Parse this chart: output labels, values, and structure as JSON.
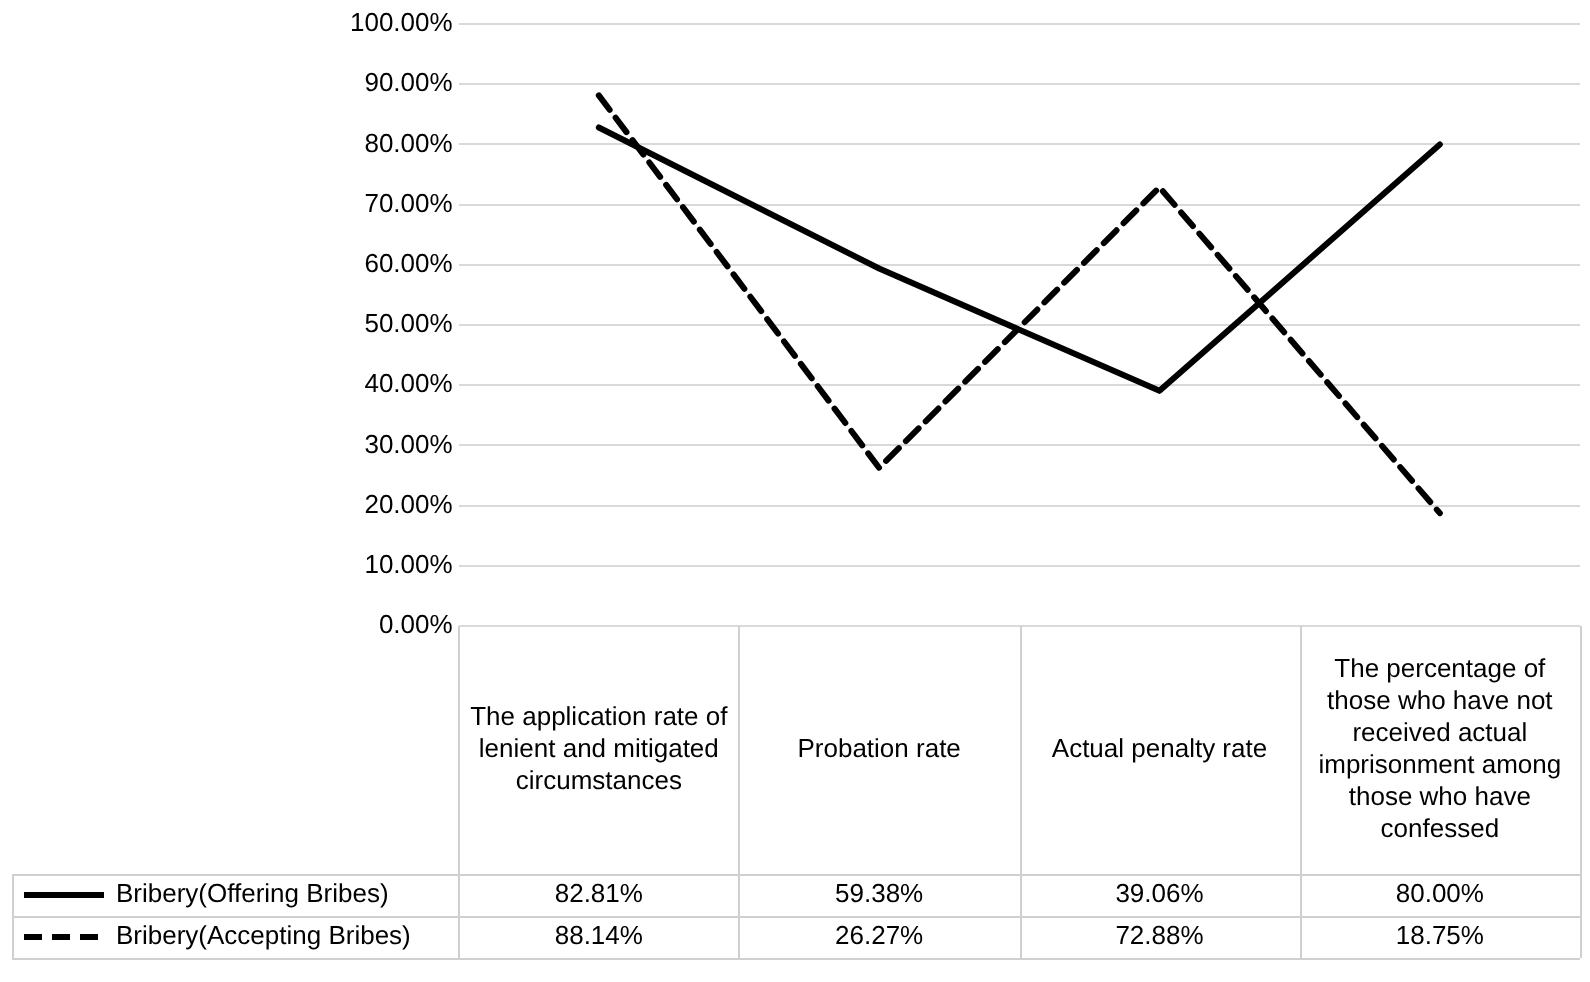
{
  "chart_data": {
    "type": "line",
    "categories": [
      "The application rate of lenient and mitigated circumstances",
      "Probation rate",
      "Actual penalty rate",
      "The percentage of those who have not received actual imprisonment among those who have confessed"
    ],
    "series": [
      {
        "name": "Bribery(Offering Bribes)",
        "color": "#000000",
        "line_style": "solid",
        "values": [
          82.81,
          59.38,
          39.06,
          80.0
        ],
        "value_labels": [
          "82.81%",
          "59.38%",
          "39.06%",
          "80.00%"
        ]
      },
      {
        "name": "Bribery(Accepting Bribes)",
        "color": "#000000",
        "line_style": "dashed",
        "values": [
          88.14,
          26.27,
          72.88,
          18.75
        ],
        "value_labels": [
          "88.14%",
          "26.27%",
          "72.88%",
          "18.75%"
        ]
      }
    ],
    "ylim": [
      0,
      100
    ],
    "yticks": [
      {
        "value": 0,
        "label": "0.00%"
      },
      {
        "value": 10,
        "label": "10.00%"
      },
      {
        "value": 20,
        "label": "20.00%"
      },
      {
        "value": 30,
        "label": "30.00%"
      },
      {
        "value": 40,
        "label": "40.00%"
      },
      {
        "value": 50,
        "label": "50.00%"
      },
      {
        "value": 60,
        "label": "60.00%"
      },
      {
        "value": 70,
        "label": "70.00%"
      },
      {
        "value": 80,
        "label": "80.00%"
      },
      {
        "value": 90,
        "label": "90.00%"
      },
      {
        "value": 100,
        "label": "100.00%"
      }
    ],
    "grid": "y",
    "legend": "bottom",
    "marker": "none"
  }
}
